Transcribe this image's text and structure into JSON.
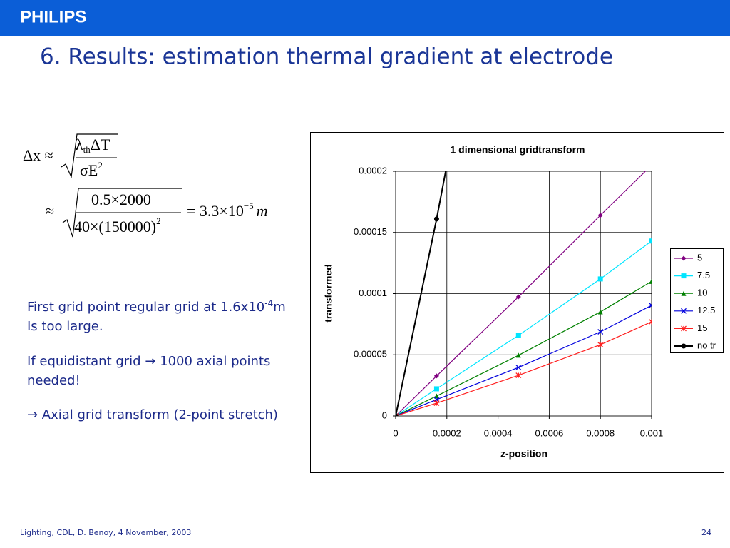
{
  "header": {
    "brand": "PHILIPS",
    "title": "6. Results: estimation thermal gradient at electrode"
  },
  "formula": {
    "line1": {
      "lhs": "Δx ≈",
      "num_sym": "λ",
      "num_sub": "th",
      "num_rest": "ΔT",
      "den": "σE",
      "den_sup": "2"
    },
    "line2": {
      "lhs": "≈",
      "num": "0.5×2000",
      "den": "40×(150000)",
      "den_sup": "2",
      "result": "= 3.3×10",
      "result_sup": "−5",
      "unit": "m"
    }
  },
  "notes": {
    "p1": {
      "text": "First grid point regular grid at 1.6x10",
      "sup": "-4",
      "unit": "m",
      "line2": "Is too large."
    },
    "p2": [
      "If equidistant grid → 1000 axial points",
      "needed!"
    ],
    "p3": "→ Axial grid transform (2-point stretch)"
  },
  "footer": {
    "left": "Lighting, CDL, D. Benoy, 4 November, 2003",
    "page": "24"
  },
  "chart_data": {
    "type": "line",
    "title": "1 dimensional gridtransform",
    "x_label": "z-position",
    "y_label": "transformed",
    "xlim": [
      0,
      0.001
    ],
    "xticks": [
      0,
      0.0002,
      0.0004,
      0.0006,
      0.0008,
      0.001
    ],
    "ylim": [
      0,
      0.0002
    ],
    "yticks": [
      0,
      5e-05,
      0.0001,
      0.00015,
      0.0002
    ],
    "grid": true,
    "legend": "right",
    "series": [
      {
        "name": "5",
        "color": "#800080",
        "marker": "diamond",
        "x": [
          0,
          0.00016,
          0.00048,
          0.0008,
          0.001
        ],
        "values": [
          0,
          3.27e-05,
          9.74e-05,
          0.000164,
          0.000205
        ]
      },
      {
        "name": "7.5",
        "color": "#00e5ff",
        "marker": "square",
        "x": [
          0,
          0.00016,
          0.00048,
          0.0008,
          0.001
        ],
        "values": [
          0,
          2.22e-05,
          6.59e-05,
          0.000112,
          0.000143
        ]
      },
      {
        "name": "10",
        "color": "#008000",
        "marker": "triangle",
        "x": [
          0,
          0.00016,
          0.00048,
          0.0008,
          0.001
        ],
        "values": [
          0,
          1.63e-05,
          4.96e-05,
          8.51e-05,
          0.00011
        ]
      },
      {
        "name": "12.5",
        "color": "#0000dd",
        "marker": "x",
        "x": [
          0,
          0.00016,
          0.00048,
          0.0008,
          0.001
        ],
        "values": [
          0,
          1.34e-05,
          3.97e-05,
          6.88e-05,
          9.04e-05
        ]
      },
      {
        "name": "15",
        "color": "#ff2020",
        "marker": "star",
        "x": [
          0,
          0.00016,
          0.00048,
          0.0008,
          0.001
        ],
        "values": [
          0,
          1.05e-05,
          3.32e-05,
          5.83e-05,
          7.7e-05
        ]
      },
      {
        "name": "no tr",
        "color": "#000000",
        "marker": "circle",
        "x": [
          0,
          0.00016,
          0.0002
        ],
        "values": [
          0,
          0.000161,
          0.000205
        ]
      }
    ]
  }
}
